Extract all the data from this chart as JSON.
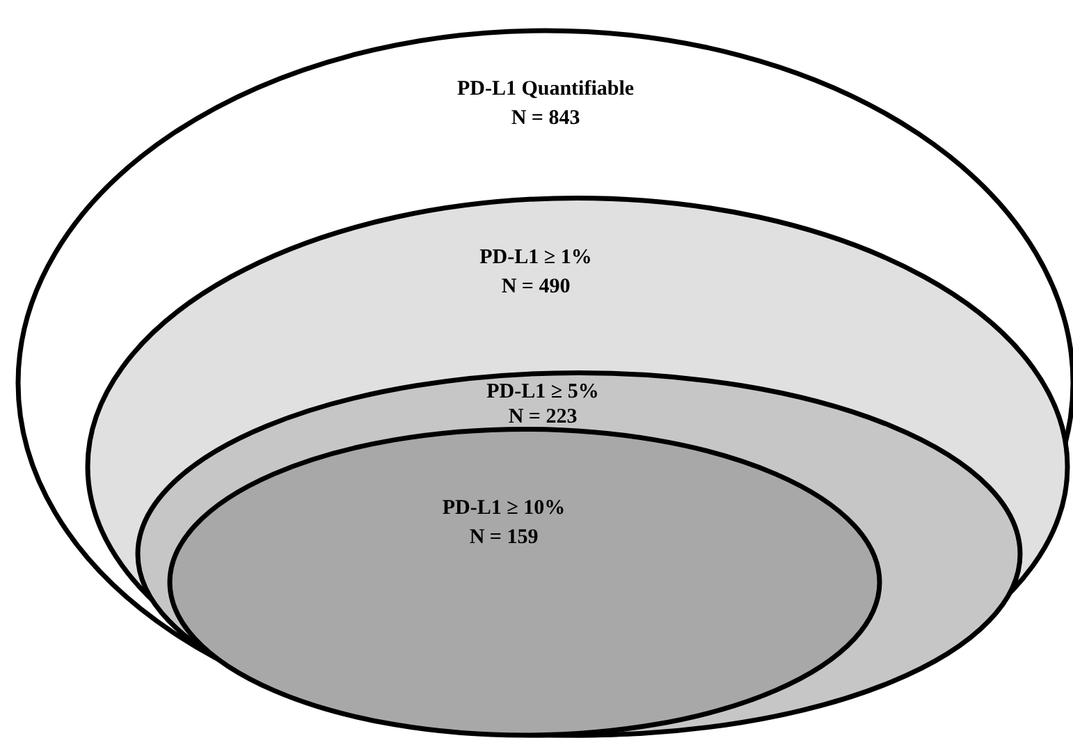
{
  "chart_data": {
    "type": "other",
    "categories": [
      "PD-L1 Quantifiable",
      "PD-L1 ≥ 1%",
      "PD-L1 ≥ 5%",
      "PD-L1 ≥ 10%"
    ],
    "values": [
      843,
      490,
      223,
      159
    ],
    "value_labels": [
      "N = 843",
      "N = 490",
      "N = 223",
      "N = 159"
    ],
    "colors": [
      "#ffffff",
      "#e0e0e0",
      "#c6c6c6",
      "#a8a8a8"
    ]
  }
}
